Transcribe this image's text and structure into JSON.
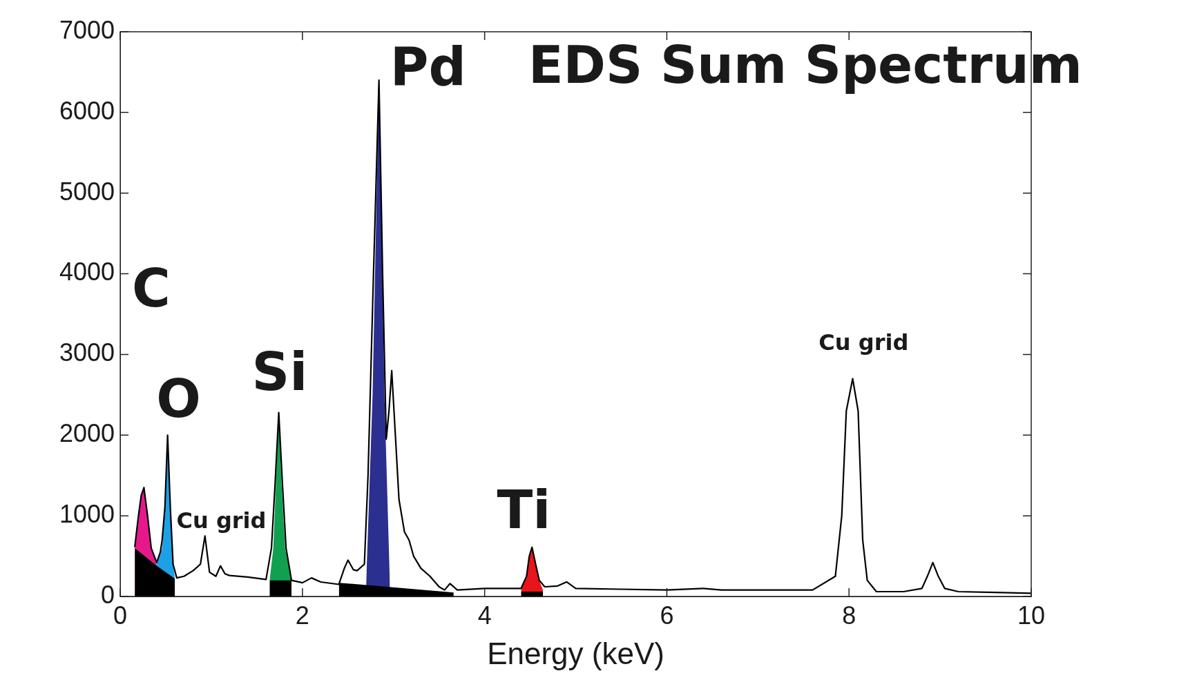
{
  "chart_data": {
    "type": "line",
    "title": "EDS Sum Spectrum",
    "xlabel": "Energy (keV)",
    "xlim": [
      0,
      10
    ],
    "xticks": [
      0,
      2,
      4,
      6,
      8,
      10
    ],
    "ylim": [
      0,
      7000
    ],
    "yticks": [
      0,
      1000,
      2000,
      3000,
      4000,
      5000,
      6000,
      7000
    ],
    "legend": false,
    "marker": "none",
    "series": [
      {
        "type": "area",
        "color": "#e6198c",
        "x": [
          0.16,
          0.2,
          0.23,
          0.26,
          0.3,
          0.34,
          0.4
        ],
        "values": [
          620,
          1000,
          1250,
          1350,
          1000,
          600,
          400
        ]
      },
      {
        "type": "area",
        "color": "#1ea0e6",
        "x": [
          0.4,
          0.46,
          0.49,
          0.52,
          0.55,
          0.58,
          0.6
        ],
        "values": [
          400,
          600,
          1100,
          2000,
          1100,
          400,
          220
        ]
      },
      {
        "type": "area",
        "color": "#10a050",
        "x": [
          1.64,
          1.68,
          1.71,
          1.74,
          1.77,
          1.81,
          1.88
        ],
        "values": [
          200,
          600,
          1400,
          2280,
          1400,
          600,
          200
        ]
      },
      {
        "type": "area",
        "color": "#2b2f8f",
        "x": [
          2.7,
          2.77,
          2.84,
          2.9,
          2.96
        ],
        "values": [
          180,
          2500,
          6400,
          2500,
          150
        ]
      },
      {
        "type": "area",
        "color": "#e8151b",
        "x": [
          4.4,
          4.46,
          4.49,
          4.52,
          4.56,
          4.6,
          4.64
        ],
        "values": [
          90,
          250,
          500,
          610,
          400,
          200,
          80
        ]
      },
      {
        "type": "area",
        "color": "#000000",
        "x": [
          0.16,
          0.4,
          0.6
        ],
        "values": [
          600,
          380,
          220
        ]
      },
      {
        "type": "area",
        "color": "#000000",
        "x": [
          1.64,
          1.88
        ],
        "values": [
          200,
          200
        ]
      },
      {
        "type": "area",
        "color": "#000000",
        "x": [
          2.4,
          3.66
        ],
        "values": [
          170,
          50
        ]
      },
      {
        "type": "area",
        "color": "#000000",
        "x": [
          4.4,
          4.64
        ],
        "values": [
          60,
          60
        ]
      },
      {
        "type": "line",
        "color": "#000000",
        "x": [
          0.16,
          0.2,
          0.23,
          0.26,
          0.3,
          0.34,
          0.4,
          0.44,
          0.46,
          0.49,
          0.52,
          0.55,
          0.58,
          0.62,
          0.7,
          0.8,
          0.88,
          0.93,
          0.98,
          1.05,
          1.1,
          1.15,
          1.2,
          1.4,
          1.6,
          1.66,
          1.7,
          1.74,
          1.78,
          1.82,
          1.88,
          2.0,
          2.1,
          2.2,
          2.4,
          2.46,
          2.5,
          2.56,
          2.6,
          2.68,
          2.72,
          2.78,
          2.84,
          2.88,
          2.92,
          2.95,
          2.98,
          3.02,
          3.06,
          3.12,
          3.17,
          3.22,
          3.3,
          3.4,
          3.5,
          3.56,
          3.62,
          3.7,
          4.0,
          4.4,
          4.46,
          4.49,
          4.52,
          4.56,
          4.6,
          4.66,
          4.8,
          4.9,
          5.0,
          5.5,
          6.0,
          6.4,
          6.6,
          7.0,
          7.6,
          7.85,
          7.92,
          7.97,
          8.04,
          8.1,
          8.15,
          8.2,
          8.3,
          8.6,
          8.8,
          8.86,
          8.92,
          8.98,
          9.05,
          9.2,
          9.6,
          10.0
        ],
        "values": [
          620,
          1000,
          1250,
          1350,
          1000,
          600,
          420,
          550,
          700,
          1100,
          2000,
          1100,
          400,
          230,
          250,
          320,
          400,
          750,
          300,
          250,
          380,
          280,
          260,
          240,
          210,
          600,
          1400,
          2280,
          1400,
          600,
          200,
          170,
          230,
          180,
          150,
          350,
          450,
          330,
          320,
          400,
          1500,
          4000,
          6400,
          4000,
          1950,
          2300,
          2800,
          2000,
          1200,
          800,
          700,
          500,
          350,
          250,
          120,
          80,
          160,
          80,
          100,
          100,
          250,
          500,
          610,
          400,
          200,
          120,
          130,
          180,
          100,
          90,
          80,
          100,
          80,
          80,
          80,
          250,
          1000,
          2300,
          2700,
          2300,
          700,
          200,
          60,
          60,
          100,
          250,
          420,
          250,
          100,
          60,
          50,
          40
        ]
      }
    ],
    "annotations": [
      "C",
      "O",
      "Si",
      "Pd",
      "Ti",
      "Cu grid",
      "Cu grid"
    ]
  }
}
